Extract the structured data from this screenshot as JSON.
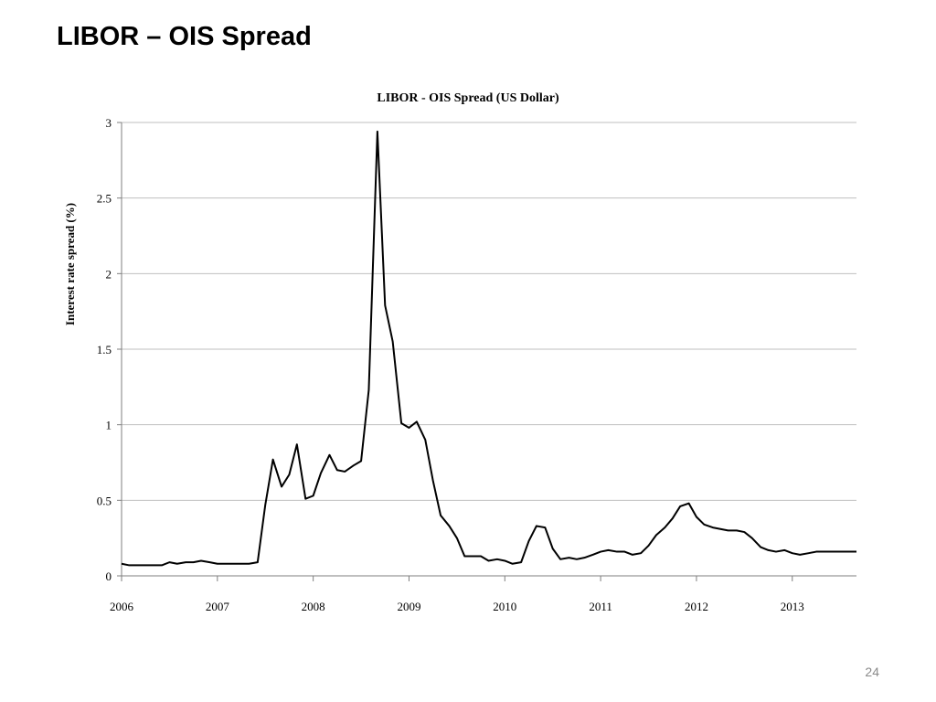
{
  "slide": {
    "title": "LIBOR – OIS Spread",
    "page_number": "24"
  },
  "colors": {
    "line": "#000000",
    "grid": "#bfbfbf",
    "axis": "#7f7f7f",
    "background": "#ffffff"
  },
  "chart_data": {
    "type": "line",
    "title": "LIBOR - OIS Spread (US Dollar)",
    "xlabel": "",
    "ylabel": "Interest rate spread (%)",
    "xlim": [
      2006,
      2013.67
    ],
    "ylim": [
      0,
      3
    ],
    "y_ticks": [
      "0",
      "0.5",
      "1",
      "1.5",
      "2",
      "2.5",
      "3"
    ],
    "x_ticks": [
      "2006",
      "2007",
      "2008",
      "2009",
      "2010",
      "2011",
      "2012",
      "2013"
    ],
    "grid": true,
    "legend": "none",
    "series": [
      {
        "x": [
          2006.0,
          2006.08,
          2006.17,
          2006.25,
          2006.33,
          2006.42,
          2006.5,
          2006.58,
          2006.67,
          2006.75,
          2006.83,
          2006.92,
          2007.0,
          2007.08,
          2007.17,
          2007.25,
          2007.33,
          2007.42,
          2007.5,
          2007.58,
          2007.67,
          2007.75,
          2007.83,
          2007.92,
          2008.0,
          2008.08,
          2008.17,
          2008.25,
          2008.33,
          2008.42,
          2008.5,
          2008.58,
          2008.67,
          2008.75,
          2008.83,
          2008.92,
          2009.0,
          2009.08,
          2009.17,
          2009.25,
          2009.33,
          2009.42,
          2009.5,
          2009.58,
          2009.67,
          2009.75,
          2009.83,
          2009.92,
          2010.0,
          2010.08,
          2010.17,
          2010.25,
          2010.33,
          2010.42,
          2010.5,
          2010.58,
          2010.67,
          2010.75,
          2010.83,
          2010.92,
          2011.0,
          2011.08,
          2011.17,
          2011.25,
          2011.33,
          2011.42,
          2011.5,
          2011.58,
          2011.67,
          2011.75,
          2011.83,
          2011.92,
          2012.0,
          2012.08,
          2012.17,
          2012.25,
          2012.33,
          2012.42,
          2012.5,
          2012.58,
          2012.67,
          2012.75,
          2012.83,
          2012.92,
          2013.0,
          2013.08,
          2013.17,
          2013.25,
          2013.33,
          2013.42,
          2013.5,
          2013.58,
          2013.67
        ],
        "values": [
          0.08,
          0.07,
          0.07,
          0.07,
          0.07,
          0.07,
          0.09,
          0.08,
          0.09,
          0.09,
          0.1,
          0.09,
          0.08,
          0.08,
          0.08,
          0.08,
          0.08,
          0.09,
          0.47,
          0.77,
          0.59,
          0.67,
          0.87,
          0.51,
          0.53,
          0.68,
          0.8,
          0.7,
          0.69,
          0.73,
          0.76,
          1.23,
          2.94,
          1.79,
          1.55,
          1.01,
          0.98,
          1.02,
          0.9,
          0.63,
          0.4,
          0.33,
          0.25,
          0.13,
          0.13,
          0.13,
          0.1,
          0.11,
          0.1,
          0.08,
          0.09,
          0.23,
          0.33,
          0.32,
          0.18,
          0.11,
          0.12,
          0.11,
          0.12,
          0.14,
          0.16,
          0.17,
          0.16,
          0.16,
          0.14,
          0.15,
          0.2,
          0.27,
          0.32,
          0.38,
          0.46,
          0.48,
          0.39,
          0.34,
          0.32,
          0.31,
          0.3,
          0.3,
          0.29,
          0.25,
          0.19,
          0.17,
          0.16,
          0.17,
          0.15,
          0.14,
          0.15,
          0.16,
          0.16,
          0.16,
          0.16,
          0.16,
          0.16
        ]
      }
    ]
  }
}
